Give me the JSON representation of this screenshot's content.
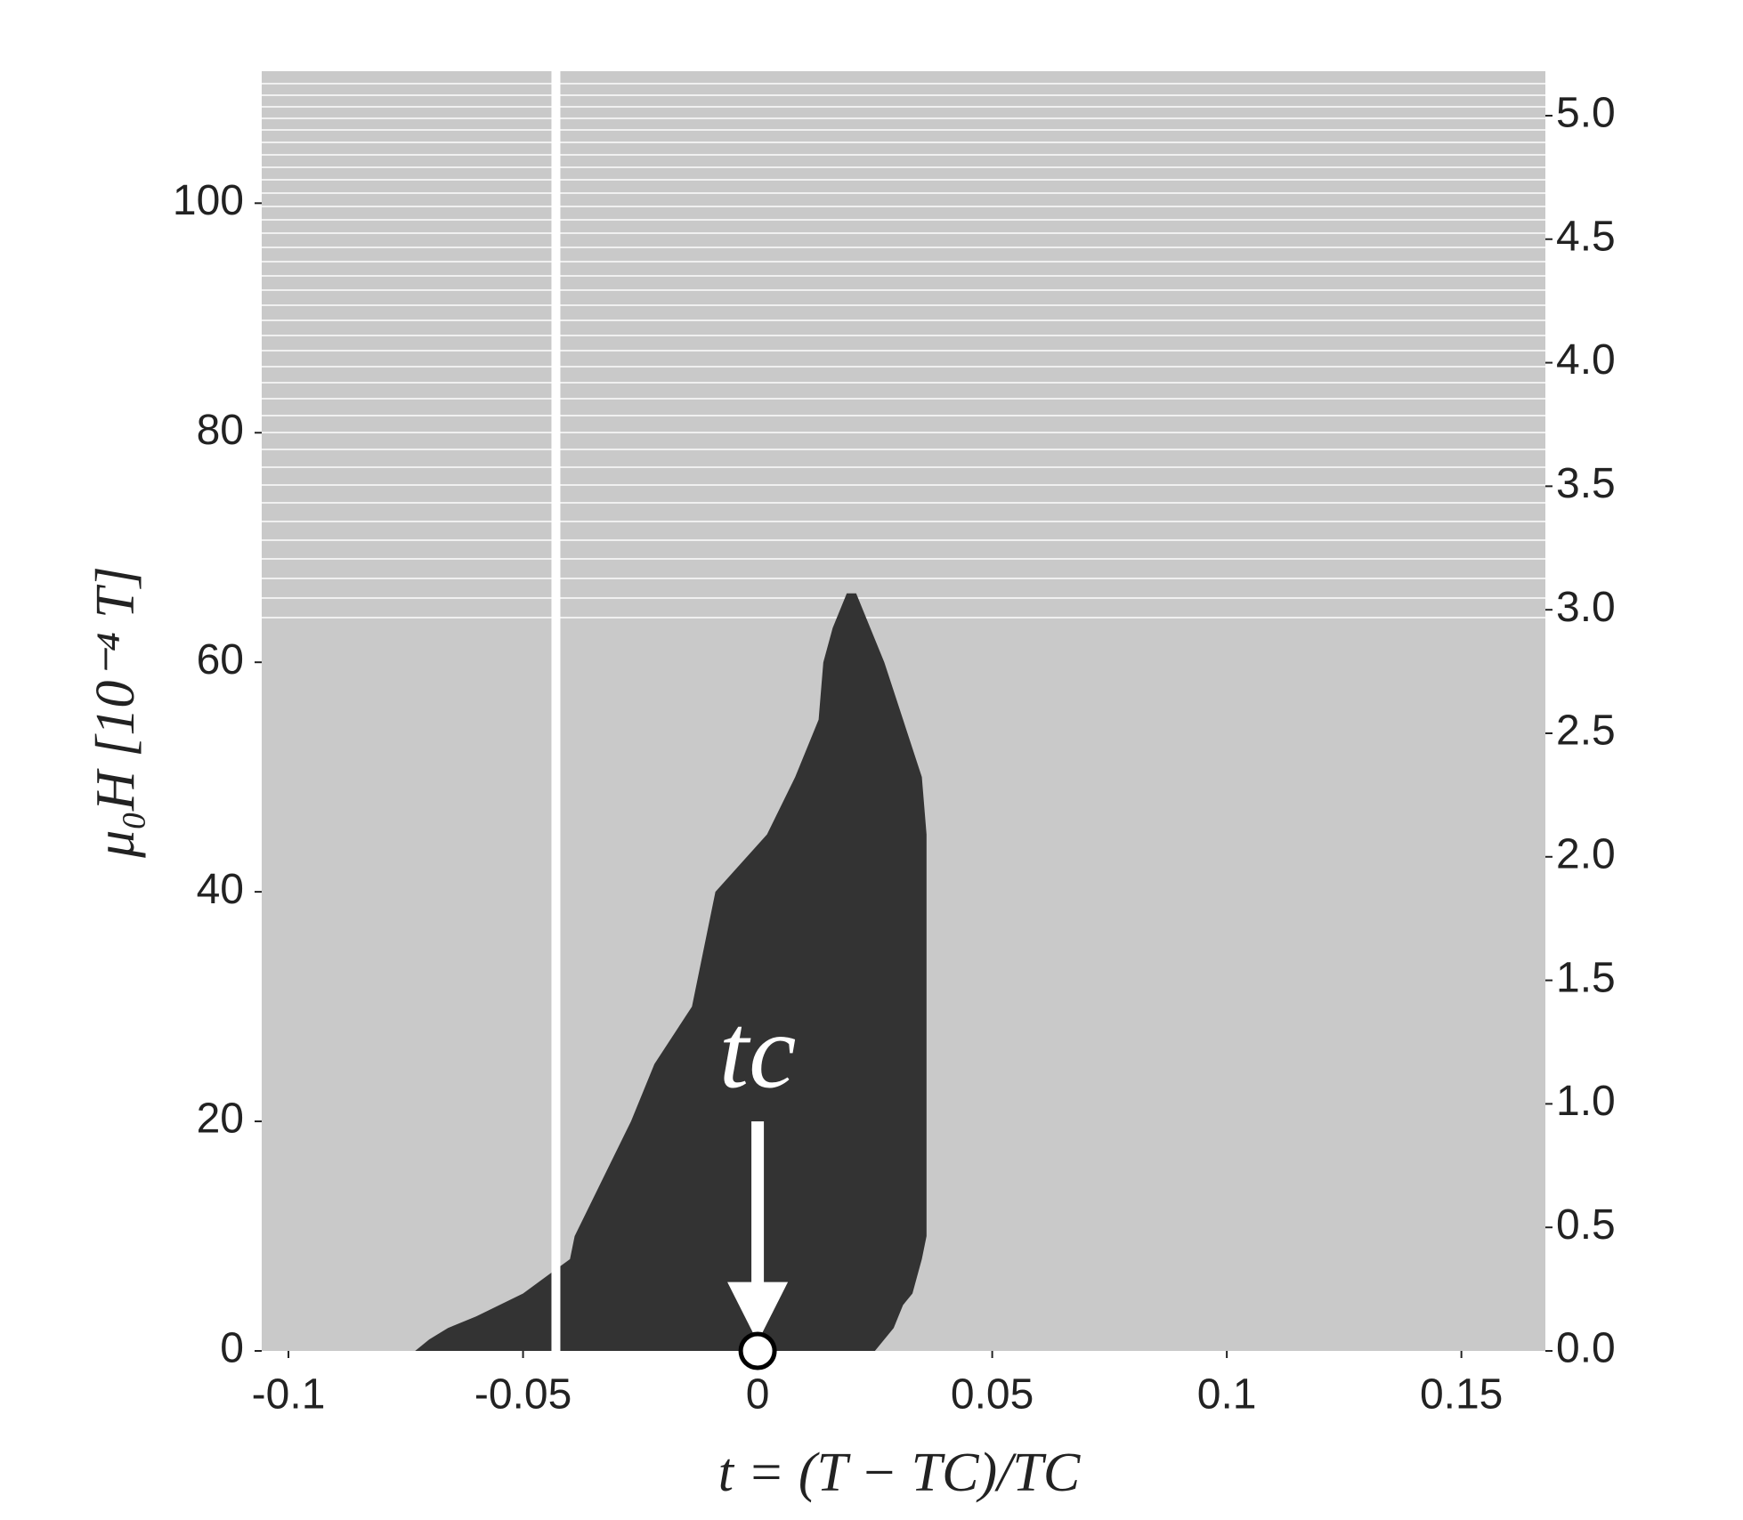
{
  "chart_data": {
    "type": "area",
    "x_label": "t = (T − TC)/TC",
    "y_label": "μ₀H [10⁻⁴ T]",
    "annotation": "tc",
    "background_color": "#c9c9c9",
    "color": "#333333",
    "y": [
      0,
      1,
      2,
      3,
      4,
      5,
      6.5,
      8,
      10,
      15,
      20,
      25,
      30,
      40,
      45,
      50,
      55,
      60,
      63,
      66
    ],
    "x_left": [
      -0.073,
      -0.07,
      -0.066,
      -0.06,
      -0.055,
      -0.05,
      -0.045,
      -0.04,
      -0.039,
      -0.033,
      -0.027,
      -0.022,
      -0.014,
      -0.009,
      0.002,
      0.008,
      0.013,
      0.014,
      0.016,
      0.019
    ],
    "x_right": [
      0.025,
      0.027,
      0.029,
      0.03,
      0.031,
      0.033,
      0.034,
      0.035,
      0.036,
      0.036,
      0.036,
      0.036,
      0.036,
      0.036,
      0.036,
      0.035,
      0.031,
      0.027,
      0.024,
      0.021
    ],
    "marker_line_x": -0.043,
    "critical_x": 0,
    "xlim": [
      -0.1057,
      0.1679
    ],
    "xticks": [
      -0.1,
      -0.05,
      0,
      0.05,
      0.1,
      0.15
    ],
    "ylim": [
      0,
      111.5
    ],
    "yticks": [
      0,
      20,
      40,
      60,
      80,
      100
    ],
    "y2lim": [
      0,
      5.18
    ],
    "y2ticks": [
      {
        "value": 0,
        "label": "0.0"
      },
      {
        "value": 0.5,
        "label": "0.5"
      },
      {
        "value": 1,
        "label": "1.0"
      },
      {
        "value": 1.5,
        "label": "1.5"
      },
      {
        "value": 2,
        "label": "2.0"
      },
      {
        "value": 2.5,
        "label": "2.5"
      },
      {
        "value": 3,
        "label": "3.0"
      },
      {
        "value": 3.5,
        "label": "3.5"
      },
      {
        "value": 4,
        "label": "4.0"
      },
      {
        "value": 4.5,
        "label": "4.5"
      },
      {
        "value": 5,
        "label": "5.0"
      }
    ]
  }
}
